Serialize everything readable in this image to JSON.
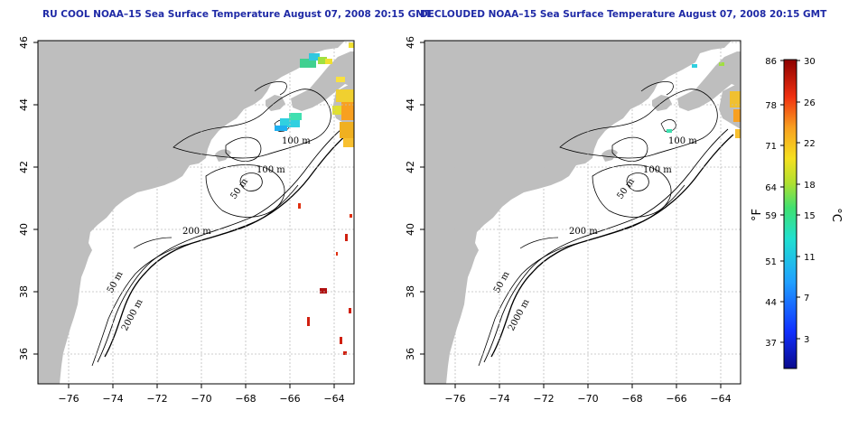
{
  "panels": [
    {
      "title": "RU COOL NOAA–15 Sea Surface Temperature August 07, 2008 20:15 GMT"
    },
    {
      "title": "DECLOUDED NOAA–15 Sea Surface Temperature August 07, 2008 20:15 GMT"
    }
  ],
  "axes": {
    "lon_ticks": [
      "−76",
      "−74",
      "−72",
      "−70",
      "−68",
      "−66",
      "−64"
    ],
    "lat_ticks": [
      "36",
      "38",
      "40",
      "42",
      "44",
      "46"
    ]
  },
  "contour_labels": {
    "m100_a": "100 m",
    "m100_b": "100 m",
    "m50_a": "50 m",
    "m200": "200 m",
    "m50_b": "50 m",
    "m2000": "2000 m"
  },
  "colorbar": {
    "fahrenheit_label": "°F",
    "celsius_label": "°C",
    "fahrenheit_ticks": [
      "86",
      "78",
      "71",
      "64",
      "59",
      "51",
      "44",
      "37"
    ],
    "celsius_ticks": [
      "30",
      "26",
      "22",
      "18",
      "15",
      "11",
      "7",
      "3"
    ]
  },
  "colors": {
    "land": "#bebebe",
    "ocean": "#ffffff",
    "title": "#1f2aa6",
    "grid": "#bdbdbd"
  }
}
